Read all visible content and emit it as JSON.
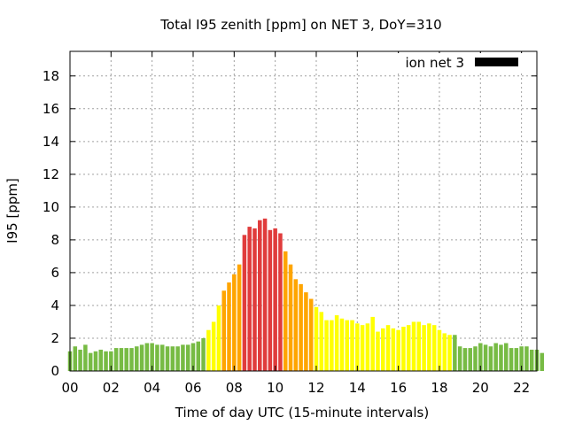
{
  "chart_data": {
    "type": "bar",
    "title": "Total I95 zenith [ppm] on NET 3, DoY=310",
    "xlabel": "Time of day UTC (15-minute intervals)",
    "ylabel": "I95 [ppm]",
    "xlim": [
      0,
      22.75
    ],
    "ylim": [
      0,
      19.5
    ],
    "x_ticks": [
      "00",
      "02",
      "04",
      "06",
      "08",
      "10",
      "12",
      "14",
      "16",
      "18",
      "20",
      "22"
    ],
    "y_ticks": [
      "0",
      "2",
      "4",
      "6",
      "8",
      "10",
      "12",
      "14",
      "16",
      "18"
    ],
    "grid": true,
    "legend": {
      "position": "top-right",
      "entries": [
        {
          "label": "ion net 3",
          "color": "#000000"
        }
      ]
    },
    "colors": {
      "low": "#77bb44",
      "medium": "#ffff00",
      "high": "#ffa500",
      "very_high": "#e03c3c"
    },
    "interval_hours": 0.25,
    "series": [
      {
        "name": "ion net 3",
        "values": [
          1.2,
          1.5,
          1.3,
          1.6,
          1.1,
          1.2,
          1.3,
          1.2,
          1.2,
          1.4,
          1.4,
          1.4,
          1.4,
          1.5,
          1.6,
          1.7,
          1.7,
          1.6,
          1.6,
          1.5,
          1.5,
          1.5,
          1.6,
          1.6,
          1.7,
          1.8,
          2.0,
          2.5,
          3.0,
          4.0,
          4.9,
          5.4,
          5.9,
          6.5,
          8.3,
          8.8,
          8.7,
          9.2,
          9.3,
          8.6,
          8.7,
          8.4,
          7.3,
          6.5,
          5.6,
          5.3,
          4.8,
          4.4,
          3.9,
          3.6,
          3.1,
          3.1,
          3.4,
          3.2,
          3.1,
          3.1,
          2.9,
          2.8,
          2.9,
          3.3,
          2.4,
          2.6,
          2.8,
          2.6,
          2.5,
          2.7,
          2.8,
          3.0,
          3.0,
          2.8,
          2.9,
          2.8,
          2.5,
          2.3,
          2.2,
          2.2,
          1.5,
          1.4,
          1.4,
          1.5,
          1.7,
          1.6,
          1.5,
          1.7,
          1.6,
          1.7,
          1.4,
          1.4,
          1.5,
          1.5,
          1.3,
          1.3,
          1.1
        ],
        "levels": [
          "low",
          "low",
          "low",
          "low",
          "low",
          "low",
          "low",
          "low",
          "low",
          "low",
          "low",
          "low",
          "low",
          "low",
          "low",
          "low",
          "low",
          "low",
          "low",
          "low",
          "low",
          "low",
          "low",
          "low",
          "low",
          "low",
          "low",
          "medium",
          "medium",
          "medium",
          "high",
          "high",
          "high",
          "high",
          "very_high",
          "very_high",
          "very_high",
          "very_high",
          "very_high",
          "very_high",
          "very_high",
          "very_high",
          "high",
          "high",
          "high",
          "high",
          "high",
          "high",
          "medium",
          "medium",
          "medium",
          "medium",
          "medium",
          "medium",
          "medium",
          "medium",
          "medium",
          "medium",
          "medium",
          "medium",
          "medium",
          "medium",
          "medium",
          "medium",
          "medium",
          "medium",
          "medium",
          "medium",
          "medium",
          "medium",
          "medium",
          "medium",
          "medium",
          "medium",
          "medium",
          "low",
          "low",
          "low",
          "low",
          "low",
          "low",
          "low",
          "low",
          "low",
          "low",
          "low",
          "low",
          "low",
          "low",
          "low",
          "low",
          "low",
          "low"
        ]
      }
    ]
  }
}
